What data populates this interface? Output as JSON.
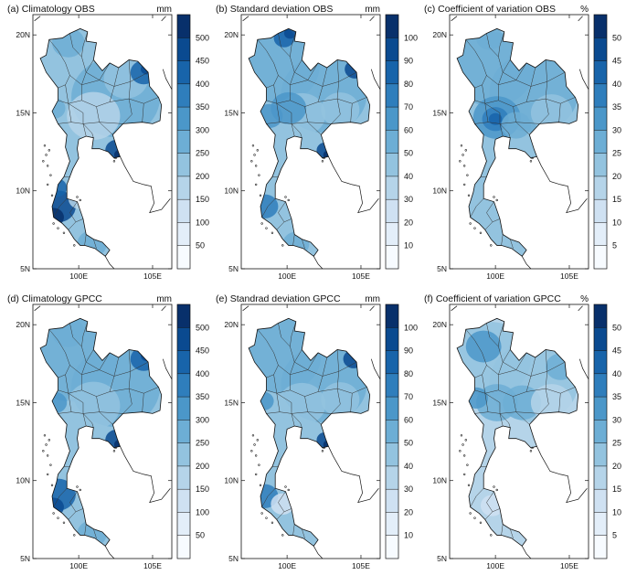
{
  "panels": [
    {
      "id": "a",
      "title": "(a) Climatology OBS",
      "unit": "mm",
      "cbar": [
        "50",
        "100",
        "150",
        "200",
        "250",
        "300",
        "350",
        "400",
        "450",
        "500"
      ],
      "lat_labels": [
        "20N",
        "15N",
        "10N",
        "5N"
      ],
      "lon_labels": [
        "100E",
        "105E"
      ]
    },
    {
      "id": "b",
      "title": "(b) Standard deviation OBS",
      "unit": "mm",
      "cbar": [
        "10",
        "20",
        "30",
        "40",
        "50",
        "60",
        "70",
        "80",
        "90",
        "100"
      ],
      "lat_labels": [
        "20N",
        "15N",
        "10N",
        "5N"
      ],
      "lon_labels": [
        "100E",
        "105E"
      ]
    },
    {
      "id": "c",
      "title": "(c) Coefficient of variation OBS",
      "unit": "%",
      "cbar": [
        "5",
        "10",
        "15",
        "20",
        "25",
        "30",
        "35",
        "40",
        "45",
        "50"
      ],
      "lat_labels": [
        "20N",
        "15N",
        "10N",
        "5N"
      ],
      "lon_labels": [
        "100E",
        "105E"
      ]
    },
    {
      "id": "d",
      "title": "(d) Climatology GPCC",
      "unit": "mm",
      "cbar": [
        "50",
        "100",
        "150",
        "200",
        "250",
        "300",
        "350",
        "400",
        "450",
        "500"
      ],
      "lat_labels": [
        "20N",
        "15N",
        "10N",
        "5N"
      ],
      "lon_labels": [
        "100E",
        "105E"
      ]
    },
    {
      "id": "e",
      "title": "(e) Standrad deviation GPCC",
      "unit": "mm",
      "cbar": [
        "10",
        "20",
        "30",
        "40",
        "50",
        "60",
        "70",
        "80",
        "90",
        "100"
      ],
      "lat_labels": [
        "20N",
        "15N",
        "10N",
        "5N"
      ],
      "lon_labels": [
        "100E",
        "105E"
      ]
    },
    {
      "id": "f",
      "title": "(f) Coefficient of variation GPCC",
      "unit": "%",
      "cbar": [
        "5",
        "10",
        "15",
        "20",
        "25",
        "30",
        "35",
        "40",
        "45",
        "50"
      ],
      "lat_labels": [
        "20N",
        "15N",
        "10N",
        "5N"
      ],
      "lon_labels": [
        "100E",
        "105E"
      ]
    }
  ],
  "colors": {
    "palette": [
      "#f7fbff",
      "#e3eef9",
      "#cfe1f2",
      "#b5d4e9",
      "#93c3df",
      "#6daed5",
      "#4b97c9",
      "#2f7ebc",
      "#1864aa",
      "#0a4a90",
      "#08306b"
    ]
  }
}
